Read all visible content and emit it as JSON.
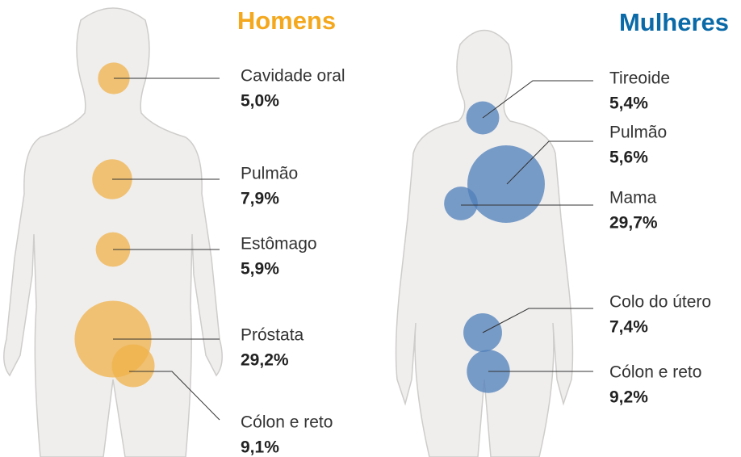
{
  "chart_data": [
    {
      "type": "bubble",
      "title": "Homens",
      "color": "#f0b24a",
      "categories": [
        "Cavidade oral",
        "Pulmão",
        "Estômago",
        "Próstata",
        "Cólon e reto"
      ],
      "values": [
        5.0,
        7.9,
        5.9,
        29.2,
        9.1
      ],
      "value_labels": [
        "5,0%",
        "7,9%",
        "5,9%",
        "29,2%",
        "9,1%"
      ]
    },
    {
      "type": "bubble",
      "title": "Mulheres",
      "color": "#4f7fba",
      "categories": [
        "Tireoide",
        "Pulmão",
        "Mama",
        "Colo do útero",
        "Cólon e reto"
      ],
      "values": [
        5.4,
        5.6,
        29.7,
        7.4,
        9.2
      ],
      "value_labels": [
        "5,4%",
        "5,6%",
        "29,7%",
        "7,4%",
        "9,2%"
      ]
    }
  ]
}
